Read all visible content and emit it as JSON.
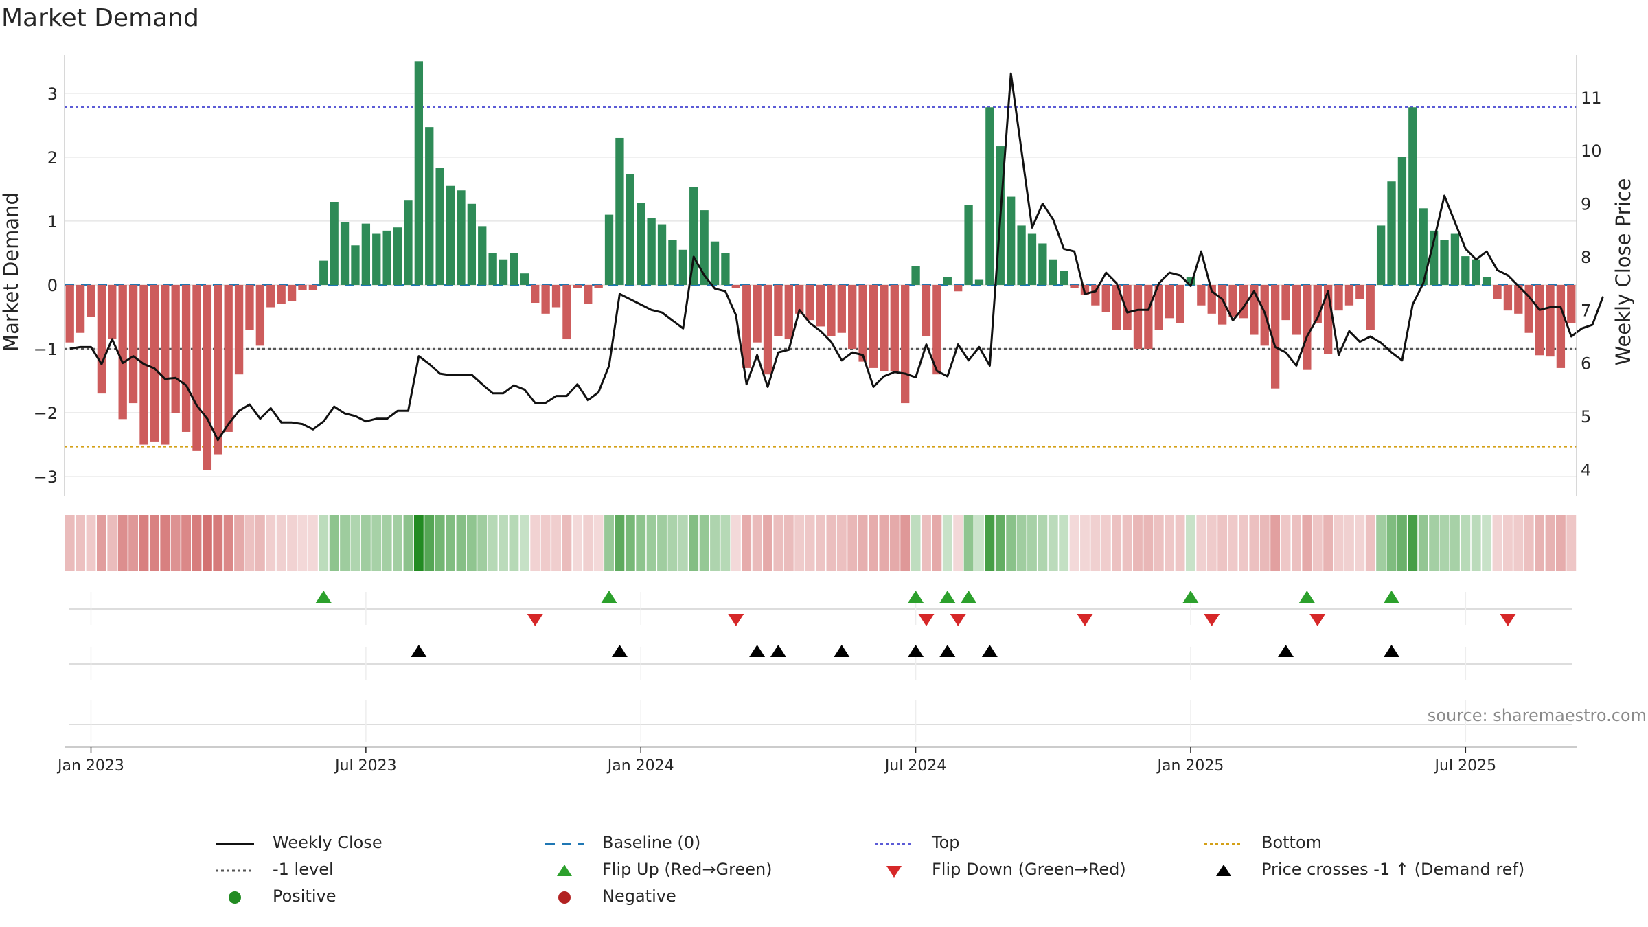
{
  "title": "Market Demand",
  "source": "source: sharemaestro.com",
  "legend": {
    "weekly_close": "Weekly Close",
    "baseline": "Baseline (0)",
    "top": "Top",
    "bottom": "Bottom",
    "minus1": "-1 level",
    "flip_up": "Flip Up (Red→Green)",
    "flip_down": "Flip Down (Green→Red)",
    "price_cross": "Price crosses -1 ↑ (Demand ref)",
    "positive": "Positive",
    "negative": "Negative"
  },
  "colors": {
    "positive_bar": "#2e8b57",
    "negative_bar": "#cd5c5c",
    "price_line": "#111111",
    "baseline": "#1f77b4",
    "top_line": "#5b5bd6",
    "bottom_line": "#d4a017",
    "minus1_line": "#555555",
    "flip_up": "#2ca02c",
    "flip_down": "#d62728",
    "cross": "#000000",
    "positive_dot": "#228b22",
    "negative_dot": "#b22222",
    "grid": "#e6e6e6"
  },
  "chart_data": {
    "type": "bar",
    "title": "Market Demand",
    "ylabel": "Market Demand",
    "y2label": "Weekly Close Price",
    "ylim": [
      -3.3,
      3.6
    ],
    "y2lim": [
      3.5,
      11.8
    ],
    "yticks": [
      -3,
      -2,
      -1,
      0,
      1,
      2,
      3
    ],
    "y2ticks": [
      4,
      5,
      6,
      7,
      8,
      9,
      10,
      11
    ],
    "start_week": "2023-01-02",
    "x_tick_labels": [
      {
        "label": "Jan 2023",
        "week": 2
      },
      {
        "label": "Jul 2023",
        "week": 28
      },
      {
        "label": "Jan 2024",
        "week": 54
      },
      {
        "label": "Jul 2024",
        "week": 80
      },
      {
        "label": "Jan 2025",
        "week": 106
      },
      {
        "label": "Jul 2025",
        "week": 132
      }
    ],
    "reference_lines": {
      "top": 2.78,
      "bottom": -2.53,
      "minus1": -1.0,
      "baseline": 0
    },
    "demand": [
      -0.9,
      -0.75,
      -0.5,
      -1.7,
      -0.85,
      -2.1,
      -1.85,
      -2.5,
      -2.45,
      -2.5,
      -2.0,
      -2.3,
      -2.6,
      -2.9,
      -2.65,
      -2.3,
      -1.4,
      -0.7,
      -0.95,
      -0.35,
      -0.3,
      -0.25,
      -0.08,
      -0.08,
      0.38,
      1.3,
      0.98,
      0.62,
      0.96,
      0.8,
      0.85,
      0.9,
      1.33,
      3.5,
      2.47,
      1.83,
      1.55,
      1.48,
      1.27,
      0.92,
      0.5,
      0.4,
      0.5,
      0.18,
      -0.28,
      -0.45,
      -0.35,
      -0.85,
      -0.05,
      -0.3,
      -0.05,
      1.1,
      2.3,
      1.73,
      1.28,
      1.05,
      0.95,
      0.7,
      0.55,
      1.53,
      1.17,
      0.68,
      0.5,
      -0.05,
      -1.3,
      -0.9,
      -1.4,
      -0.8,
      -0.85,
      -0.45,
      -0.55,
      -0.65,
      -0.8,
      -0.75,
      -1.0,
      -1.2,
      -1.3,
      -1.35,
      -1.35,
      -1.85,
      0.3,
      -0.8,
      -1.4,
      0.12,
      -0.1,
      1.25,
      0.08,
      2.78,
      2.17,
      1.38,
      0.93,
      0.8,
      0.65,
      0.4,
      0.22,
      -0.05,
      -0.15,
      -0.32,
      -0.42,
      -0.7,
      -0.7,
      -1.0,
      -1.0,
      -0.7,
      -0.52,
      -0.6,
      0.12,
      -0.32,
      -0.45,
      -0.62,
      -0.5,
      -0.52,
      -0.78,
      -0.95,
      -1.62,
      -0.55,
      -0.78,
      -1.33,
      -0.6,
      -1.08,
      -0.4,
      -0.32,
      -0.22,
      -0.7,
      0.93,
      1.62,
      2.0,
      2.78,
      1.2,
      0.85,
      0.7,
      0.8,
      0.45,
      0.4,
      0.12,
      -0.22,
      -0.4,
      -0.45,
      -0.75,
      -1.1,
      -1.12,
      -1.3,
      -0.6
    ],
    "close": [
      6.27,
      6.3,
      6.3,
      5.98,
      6.45,
      6.0,
      6.13,
      5.98,
      5.9,
      5.7,
      5.72,
      5.58,
      5.2,
      4.95,
      4.55,
      4.85,
      5.1,
      5.22,
      4.95,
      5.15,
      4.88,
      4.88,
      4.85,
      4.75,
      4.9,
      5.18,
      5.05,
      5.0,
      4.9,
      4.95,
      4.95,
      5.1,
      5.1,
      6.13,
      5.98,
      5.8,
      5.77,
      5.78,
      5.78,
      5.6,
      5.43,
      5.43,
      5.58,
      5.5,
      5.25,
      5.25,
      5.38,
      5.38,
      5.6,
      5.3,
      5.45,
      5.95,
      7.3,
      7.2,
      7.1,
      7.0,
      6.95,
      6.8,
      6.65,
      8.0,
      7.65,
      7.4,
      7.35,
      6.9,
      5.6,
      6.15,
      5.55,
      6.2,
      6.25,
      7.0,
      6.75,
      6.6,
      6.4,
      6.05,
      6.2,
      6.15,
      5.55,
      5.75,
      5.83,
      5.8,
      5.73,
      6.35,
      5.85,
      5.75,
      6.35,
      6.05,
      6.3,
      5.95,
      8.75,
      11.45,
      10.0,
      8.55,
      9.0,
      8.7,
      8.15,
      8.1,
      7.3,
      7.35,
      7.7,
      7.5,
      6.95,
      7.0,
      7.0,
      7.5,
      7.7,
      7.65,
      7.45,
      8.1,
      7.35,
      7.2,
      6.8,
      7.05,
      7.35,
      6.95,
      6.3,
      6.2,
      5.95,
      6.5,
      6.85,
      7.35,
      6.15,
      6.6,
      6.4,
      6.5,
      6.38,
      6.2,
      6.05,
      7.1,
      7.5,
      8.3,
      9.15,
      8.65,
      8.15,
      7.95,
      8.1,
      7.75,
      7.65,
      7.45,
      7.25,
      7.0,
      7.05,
      7.05,
      6.5,
      6.65,
      6.72,
      7.25
    ],
    "series": [
      {
        "name": "Flip Up (Red→Green)",
        "weeks": [
          24,
          51,
          80,
          83,
          85,
          106,
          117,
          125
        ]
      },
      {
        "name": "Flip Down (Green→Red)",
        "weeks": [
          44,
          63,
          81,
          84,
          96,
          108,
          118,
          136
        ]
      },
      {
        "name": "Price crosses -1 ↑ (Demand ref)",
        "weeks": [
          33,
          52,
          65,
          67,
          73,
          80,
          83,
          87,
          115,
          125
        ]
      }
    ]
  }
}
